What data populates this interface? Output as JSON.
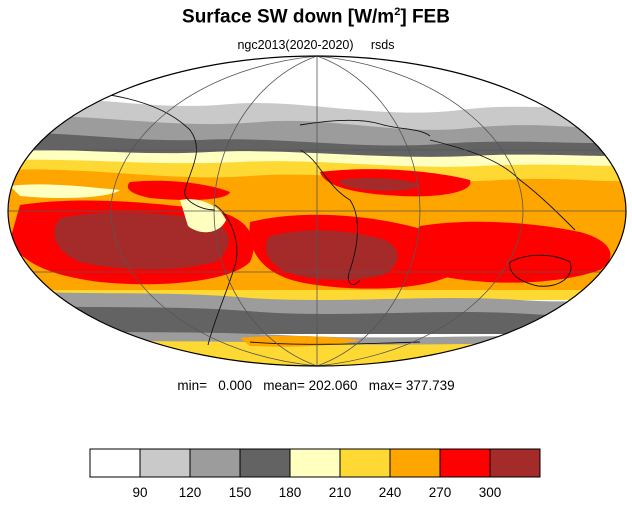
{
  "header": {
    "title_main": "Surface SW down [W/m",
    "title_sup": "2",
    "title_rest": "]  FEB",
    "subtitle": "ngc2013(2020-2020)     rsds"
  },
  "stats": {
    "text": "min=   0.000   mean= 202.060   max= 377.739",
    "min": 0.0,
    "mean": 202.06,
    "max": 377.739
  },
  "map": {
    "projection": "mollweide",
    "variable": "rsds",
    "month": "FEB"
  },
  "colorbar": {
    "levels": [
      "90",
      "120",
      "150",
      "180",
      "210",
      "240",
      "270",
      "300"
    ],
    "colors": [
      "#ffffff",
      "#c9c9c9",
      "#9c9c9c",
      "#636363",
      "#ffffc0",
      "#ffd933",
      "#ffa500",
      "#ff0000",
      "#a52a2a"
    ]
  }
}
